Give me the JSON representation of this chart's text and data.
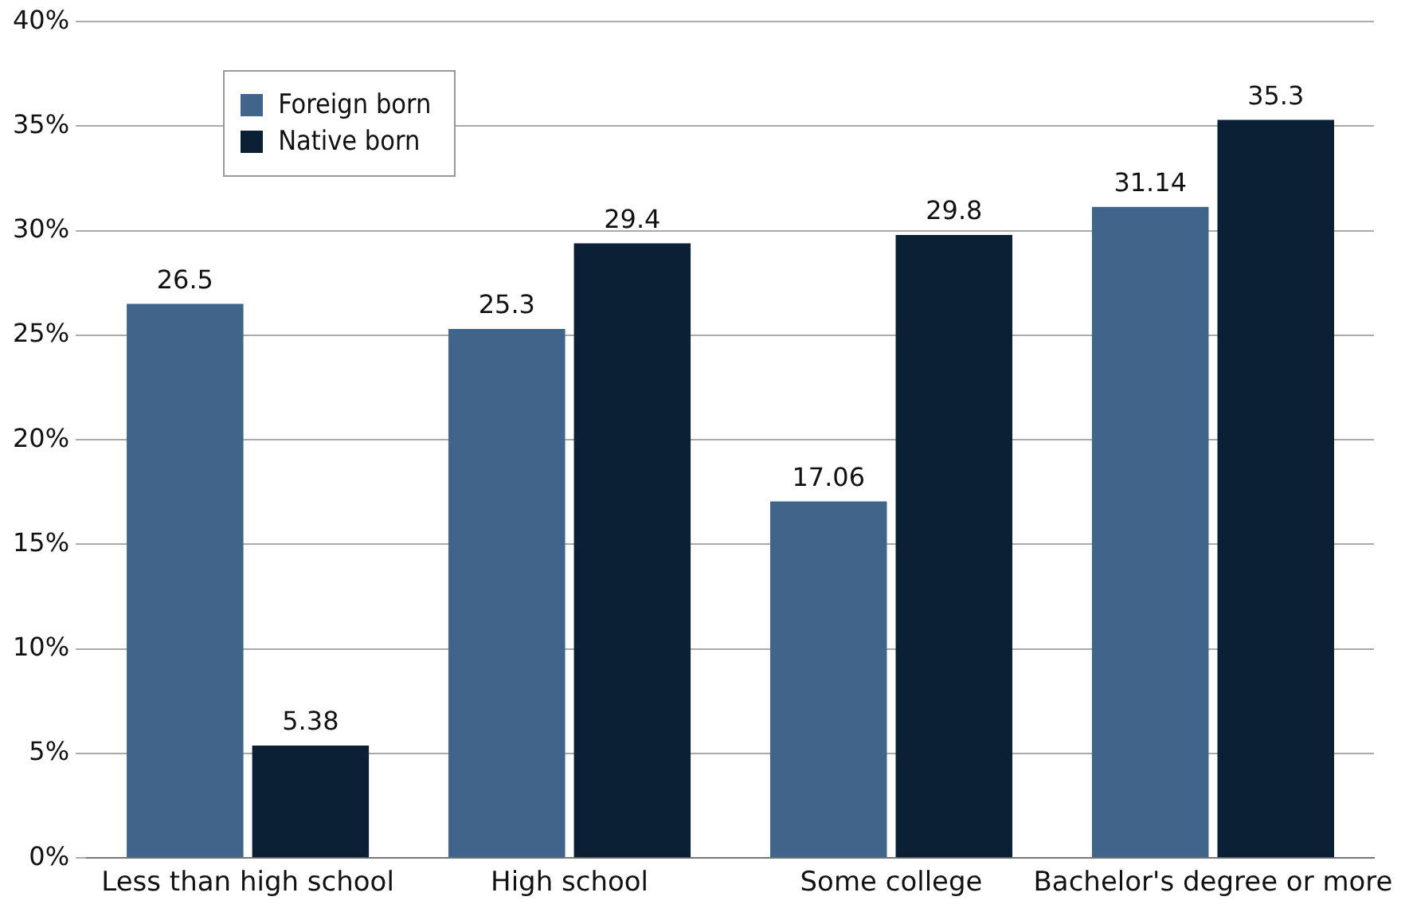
{
  "chart_data": {
    "type": "bar",
    "categories": [
      "Less than high school",
      "High school",
      "Some college",
      "Bachelor's degree or more"
    ],
    "series": [
      {
        "name": "Foreign born",
        "color": "#41658a",
        "values": [
          26.5,
          25.3,
          17.06,
          31.14
        ]
      },
      {
        "name": "Native born",
        "color": "#0b1f35",
        "values": [
          5.38,
          29.4,
          29.8,
          35.3
        ]
      }
    ],
    "ylim": [
      0,
      40
    ],
    "yticks": [
      {
        "value": 0,
        "label": "0%"
      },
      {
        "value": 5,
        "label": "5%"
      },
      {
        "value": 10,
        "label": "10%"
      },
      {
        "value": 15,
        "label": "15%"
      },
      {
        "value": 20,
        "label": "20%"
      },
      {
        "value": 25,
        "label": "25%"
      },
      {
        "value": 30,
        "label": "30%"
      },
      {
        "value": 35,
        "label": "35%"
      },
      {
        "value": 40,
        "label": "40%"
      }
    ],
    "grid": "y",
    "legend": "top left",
    "data_labels": true
  }
}
